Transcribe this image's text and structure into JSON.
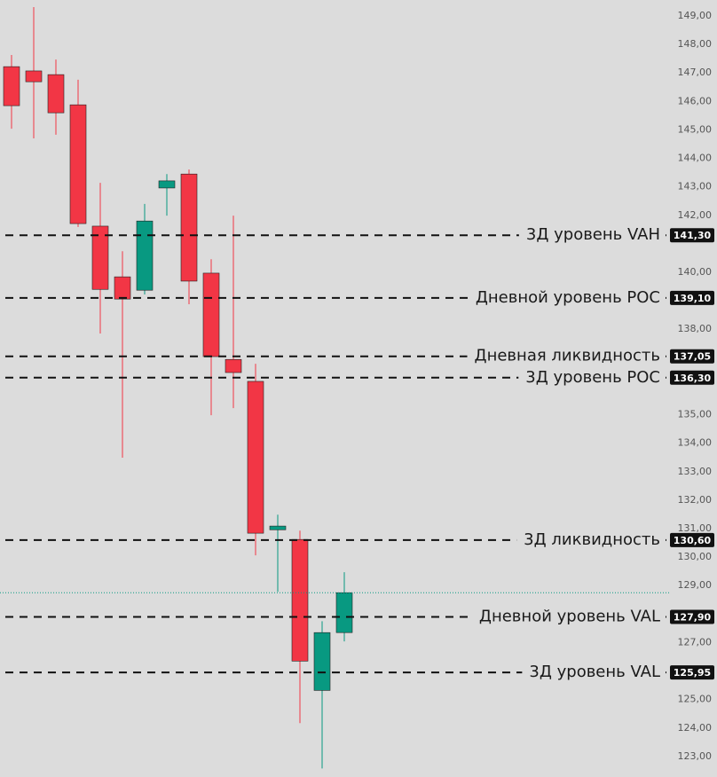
{
  "chart_data": {
    "type": "candlestick",
    "up_color": "#089981",
    "down_color": "#f23645",
    "open": [
      147.22,
      147.07,
      146.94,
      145.88,
      141.62,
      139.84,
      139.37,
      142.96,
      143.45,
      139.97,
      136.94,
      136.17,
      130.96,
      130.62,
      125.32,
      127.35
    ],
    "high": [
      147.63,
      149.31,
      147.47,
      146.76,
      143.14,
      140.74,
      142.4,
      143.45,
      143.61,
      140.46,
      141.99,
      136.79,
      131.49,
      130.93,
      127.75,
      129.47
    ],
    "low": [
      145.04,
      144.7,
      144.83,
      141.59,
      137.85,
      133.49,
      139.22,
      141.99,
      138.88,
      134.98,
      135.23,
      130.06,
      128.78,
      124.17,
      122.58,
      127.04
    ],
    "close": [
      145.85,
      146.69,
      145.6,
      141.71,
      139.4,
      139.06,
      141.8,
      143.21,
      139.69,
      137.04,
      136.48,
      130.84,
      131.09,
      126.35,
      127.35,
      128.75
    ],
    "ylim": [
      122.28,
      149.56
    ],
    "yticks": [
      {
        "value": 149,
        "label": "149,00"
      },
      {
        "value": 148,
        "label": "148,00"
      },
      {
        "value": 147,
        "label": "147,00"
      },
      {
        "value": 146,
        "label": "146,00"
      },
      {
        "value": 145,
        "label": "145,00"
      },
      {
        "value": 144,
        "label": "144,00"
      },
      {
        "value": 143,
        "label": "143,00"
      },
      {
        "value": 142,
        "label": "142,00"
      },
      {
        "value": 140,
        "label": "140,00"
      },
      {
        "value": 138,
        "label": "138,00"
      },
      {
        "value": 135,
        "label": "135,00"
      },
      {
        "value": 134,
        "label": "134,00"
      },
      {
        "value": 133,
        "label": "133,00"
      },
      {
        "value": 132,
        "label": "132,00"
      },
      {
        "value": 131,
        "label": "131,00"
      },
      {
        "value": 130,
        "label": "130,00"
      },
      {
        "value": 129,
        "label": "129,00"
      },
      {
        "value": 127,
        "label": "127,00"
      },
      {
        "value": 125,
        "label": "125,00"
      },
      {
        "value": 124,
        "label": "124,00"
      },
      {
        "value": 123,
        "label": "123,00"
      }
    ],
    "levels": {
      "names": [
        "3Д уровень VAH",
        "Дневной уровень POC",
        "Дневная ликвидность",
        "3Д уровень POC",
        "3Д ликвидность",
        "Дневной уровень VAL",
        "3Д уровень VAL"
      ],
      "values": [
        141.3,
        139.1,
        137.05,
        136.3,
        130.6,
        127.9,
        125.95
      ],
      "value_labels": [
        "141,30",
        "139,10",
        "137,05",
        "136,30",
        "130,60",
        "127,90",
        "125,95"
      ]
    }
  }
}
